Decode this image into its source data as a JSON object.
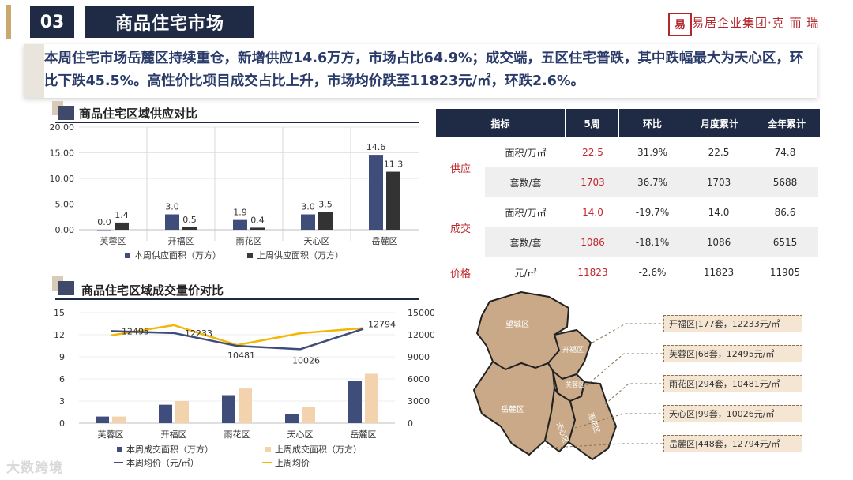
{
  "header": {
    "section_number": "03",
    "title": "商品住宅市场",
    "logo_mark": "易",
    "logo_text": "易居企业集团·克 而 瑞"
  },
  "summary": "本周住宅市场岳麓区持续重仓，新增供应14.6万方，市场占比64.9%；成交端，五区住宅普跌，其中跌幅最大为天心区，环比下跌45.5%。高性价比项目成交占比上升，市场均价跌至11823元/㎡，环跌2.6%。",
  "supply_panel": {
    "title": "商品住宅区域供应对比",
    "legend_this": "本周供应面积（万方）",
    "legend_last": "上周供应面积（万方）"
  },
  "deal_panel": {
    "title": "商品住宅区域成交量价对比",
    "legend": [
      "本周成交面积（万方）",
      "上周成交面积（万方）",
      "本周均价（元/㎡）",
      "上周均价"
    ]
  },
  "table": {
    "headers": [
      "指标",
      "5周",
      "环比",
      "月度累计",
      "全年累计"
    ],
    "groups": {
      "supply": "供应",
      "deal": "成交",
      "price": "价格"
    },
    "rows": [
      {
        "metric": "面积/万㎡",
        "week": "22.5",
        "mom": "31.9%",
        "month": "22.5",
        "year": "74.8"
      },
      {
        "metric": "套数/套",
        "week": "1703",
        "mom": "36.7%",
        "month": "1703",
        "year": "5688"
      },
      {
        "metric": "面积/万㎡",
        "week": "14.0",
        "mom": "-19.7%",
        "month": "14.0",
        "year": "86.6"
      },
      {
        "metric": "套数/套",
        "week": "1086",
        "mom": "-18.1%",
        "month": "1086",
        "year": "6515"
      },
      {
        "metric": "元/㎡",
        "week": "11823",
        "mom": "-2.6%",
        "month": "11823",
        "year": "11905"
      }
    ]
  },
  "map": {
    "districts": [
      "望城区",
      "开福区",
      "岳麓区",
      "天心区",
      "雨花区",
      "芙蓉区"
    ],
    "labels": [
      "开福区|177套，12233元/㎡",
      "芙蓉区|68套，12495元/㎡",
      "雨花区|294套，10481元/㎡",
      "天心区|99套，10026元/㎡",
      "岳麓区|448套，12794元/㎡"
    ]
  },
  "watermark": "大数跨境",
  "colors": {
    "navy": "#1f2a44",
    "accent_red": "#c0282d",
    "sand": "#c9a987",
    "gold_line": "#f2b705",
    "bar_this": "#3f4d7a",
    "bar_last": "#3a3a3a"
  },
  "chart_data": [
    {
      "type": "bar",
      "title": "商品住宅区域供应对比",
      "categories": [
        "芙蓉区",
        "开福区",
        "雨花区",
        "天心区",
        "岳麓区"
      ],
      "series": [
        {
          "name": "本周供应面积（万方）",
          "values": [
            0.0,
            3.0,
            1.9,
            3.0,
            14.6
          ]
        },
        {
          "name": "上周供应面积（万方）",
          "values": [
            1.4,
            0.5,
            0.4,
            3.5,
            11.3
          ]
        }
      ],
      "y_ticks": [
        "0.00",
        "5.00",
        "10.00",
        "15.00",
        "20.00"
      ],
      "ylim": [
        0,
        20
      ]
    },
    {
      "type": "bar",
      "title": "商品住宅区域成交量价对比",
      "categories": [
        "芙蓉区",
        "开福区",
        "雨花区",
        "天心区",
        "岳麓区"
      ],
      "bar_series": [
        {
          "name": "本周成交面积（万方）",
          "values": [
            0.9,
            2.5,
            3.8,
            1.2,
            5.7
          ]
        },
        {
          "name": "上周成交面积（万方）",
          "values": [
            0.9,
            3.0,
            4.7,
            2.2,
            6.7
          ]
        }
      ],
      "line_series": [
        {
          "name": "本周均价（元/㎡）",
          "values": [
            12495,
            12233,
            10481,
            10026,
            12794
          ]
        },
        {
          "name": "上周均价",
          "values": [
            11900,
            13300,
            10600,
            12200,
            12900
          ]
        }
      ],
      "line_labels": [
        "12495",
        "12233",
        "10481",
        "10026",
        "12794"
      ],
      "y_left_ticks": [
        "0",
        "3",
        "6",
        "9",
        "12",
        "15"
      ],
      "y_right_ticks": [
        "0",
        "3000",
        "6000",
        "9000",
        "12000",
        "15000"
      ],
      "ylim_left": [
        0,
        15
      ],
      "ylim_right": [
        0,
        15000
      ]
    }
  ]
}
